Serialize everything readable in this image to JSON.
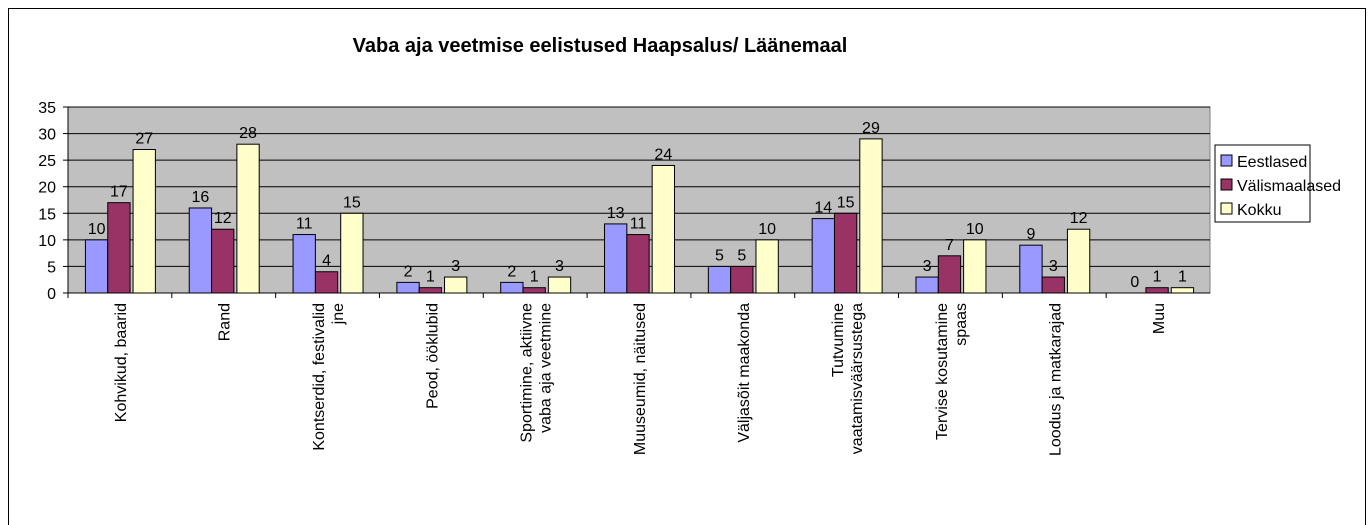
{
  "chart_data": {
    "type": "bar",
    "title": "Vaba aja veetmise eelistused Haapsalus/ Läänemaal",
    "categories": [
      "Kohvikud, baarid",
      "Rand",
      "Kontserdid, festivalid jne",
      "Peod, ööklubid",
      "Sportimine, aktiivne vaba aja veetmine",
      "Muuseumid, näitused",
      "Väljasõit maakonda",
      "Tutvumine vaatamisväärsustega",
      "Tervise kosutamine spaas",
      "Loodus ja matkarajad",
      "Muu"
    ],
    "series": [
      {
        "name": "Eestlased",
        "color": "#9999ff",
        "values": [
          10,
          16,
          11,
          2,
          2,
          13,
          5,
          14,
          3,
          9,
          0
        ]
      },
      {
        "name": "Välismaalased",
        "color": "#993366",
        "values": [
          17,
          12,
          4,
          1,
          1,
          11,
          5,
          15,
          7,
          3,
          1
        ]
      },
      {
        "name": "Kokku",
        "color": "#ffffcc",
        "values": [
          27,
          28,
          15,
          3,
          3,
          24,
          10,
          29,
          10,
          12,
          1
        ]
      }
    ],
    "ylim": [
      0,
      35
    ],
    "yticks": [
      0,
      5,
      10,
      15,
      20,
      25,
      30,
      35
    ],
    "grid": true,
    "legend": "right"
  }
}
